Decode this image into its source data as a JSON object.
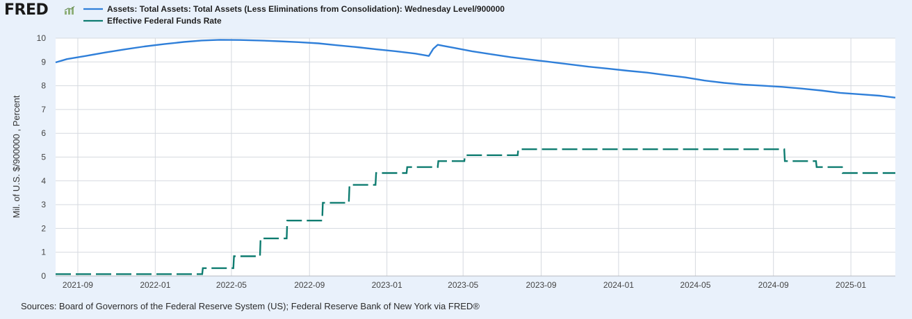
{
  "brand": {
    "logo_text": "FRED"
  },
  "source": "Sources: Board of Governors of the Federal Reserve System (US); Federal Reserve Bank of New York via FRED®",
  "colors": {
    "assets": "#2f7fd9",
    "fedfunds": "#0e7c70",
    "background": "#e9f1fb",
    "grid": "#d5d9df"
  },
  "chart_data": {
    "type": "line",
    "title": "",
    "ylabel": "Mil. of U.S. $/900000 , Percent",
    "xlabel": "",
    "ylim": [
      0,
      10
    ],
    "xlim": [
      "2021-07-28",
      "2025-03-12"
    ],
    "grid": true,
    "legend_position": "top-left",
    "y_ticks": [
      "0",
      "1",
      "2",
      "3",
      "4",
      "5",
      "6",
      "7",
      "8",
      "9",
      "10"
    ],
    "x_ticks": [
      {
        "date": "2021-09-01",
        "label": "2021-09"
      },
      {
        "date": "2022-01-01",
        "label": "2022-01"
      },
      {
        "date": "2022-05-01",
        "label": "2022-05"
      },
      {
        "date": "2022-09-01",
        "label": "2022-09"
      },
      {
        "date": "2023-01-01",
        "label": "2023-01"
      },
      {
        "date": "2023-05-01",
        "label": "2023-05"
      },
      {
        "date": "2023-09-01",
        "label": "2023-09"
      },
      {
        "date": "2024-01-01",
        "label": "2024-01"
      },
      {
        "date": "2024-05-01",
        "label": "2024-05"
      },
      {
        "date": "2024-09-01",
        "label": "2024-09"
      },
      {
        "date": "2025-01-01",
        "label": "2025-01"
      }
    ],
    "series": [
      {
        "name": "Assets: Total Assets: Total Assets (Less Eliminations from Consolidation): Wednesday Level/900000",
        "line_style": "solid",
        "x": [
          "2021-07-28",
          "2021-08-15",
          "2021-09-15",
          "2021-10-15",
          "2021-11-15",
          "2021-12-15",
          "2022-01-15",
          "2022-02-15",
          "2022-03-15",
          "2022-04-13",
          "2022-05-15",
          "2022-06-15",
          "2022-07-15",
          "2022-08-15",
          "2022-09-15",
          "2022-10-15",
          "2022-11-15",
          "2022-12-15",
          "2023-01-15",
          "2023-02-15",
          "2023-03-08",
          "2023-03-15",
          "2023-03-22",
          "2023-04-15",
          "2023-05-15",
          "2023-06-15",
          "2023-07-15",
          "2023-08-15",
          "2023-09-15",
          "2023-10-15",
          "2023-11-15",
          "2023-12-15",
          "2024-01-15",
          "2024-02-15",
          "2024-03-15",
          "2024-04-15",
          "2024-05-15",
          "2024-06-15",
          "2024-07-15",
          "2024-08-15",
          "2024-09-15",
          "2024-10-15",
          "2024-11-15",
          "2024-12-15",
          "2025-01-15",
          "2025-02-15",
          "2025-03-12"
        ],
        "y": [
          8.98,
          9.12,
          9.26,
          9.4,
          9.53,
          9.65,
          9.75,
          9.84,
          9.9,
          9.93,
          9.92,
          9.9,
          9.87,
          9.83,
          9.78,
          9.7,
          9.62,
          9.53,
          9.45,
          9.35,
          9.25,
          9.55,
          9.72,
          9.6,
          9.45,
          9.32,
          9.2,
          9.1,
          9.0,
          8.9,
          8.8,
          8.72,
          8.63,
          8.55,
          8.45,
          8.35,
          8.22,
          8.12,
          8.05,
          8.0,
          7.95,
          7.88,
          7.8,
          7.7,
          7.64,
          7.58,
          7.5
        ]
      },
      {
        "name": "Effective Federal Funds Rate",
        "line_style": "dashed",
        "steps": [
          {
            "start": "2021-07-28",
            "end": "2022-03-16",
            "value": 0.08
          },
          {
            "start": "2022-03-17",
            "end": "2022-05-04",
            "value": 0.33
          },
          {
            "start": "2022-05-05",
            "end": "2022-06-15",
            "value": 0.83
          },
          {
            "start": "2022-06-16",
            "end": "2022-07-27",
            "value": 1.58
          },
          {
            "start": "2022-07-28",
            "end": "2022-09-21",
            "value": 2.33
          },
          {
            "start": "2022-09-22",
            "end": "2022-11-02",
            "value": 3.08
          },
          {
            "start": "2022-11-03",
            "end": "2022-12-14",
            "value": 3.83
          },
          {
            "start": "2022-12-15",
            "end": "2023-02-01",
            "value": 4.33
          },
          {
            "start": "2023-02-02",
            "end": "2023-03-22",
            "value": 4.58
          },
          {
            "start": "2023-03-23",
            "end": "2023-05-03",
            "value": 4.83
          },
          {
            "start": "2023-05-04",
            "end": "2023-07-26",
            "value": 5.08
          },
          {
            "start": "2023-07-27",
            "end": "2024-09-18",
            "value": 5.33
          },
          {
            "start": "2024-09-19",
            "end": "2024-11-07",
            "value": 4.83
          },
          {
            "start": "2024-11-08",
            "end": "2024-12-18",
            "value": 4.58
          },
          {
            "start": "2024-12-19",
            "end": "2025-03-12",
            "value": 4.33
          }
        ]
      }
    ]
  }
}
